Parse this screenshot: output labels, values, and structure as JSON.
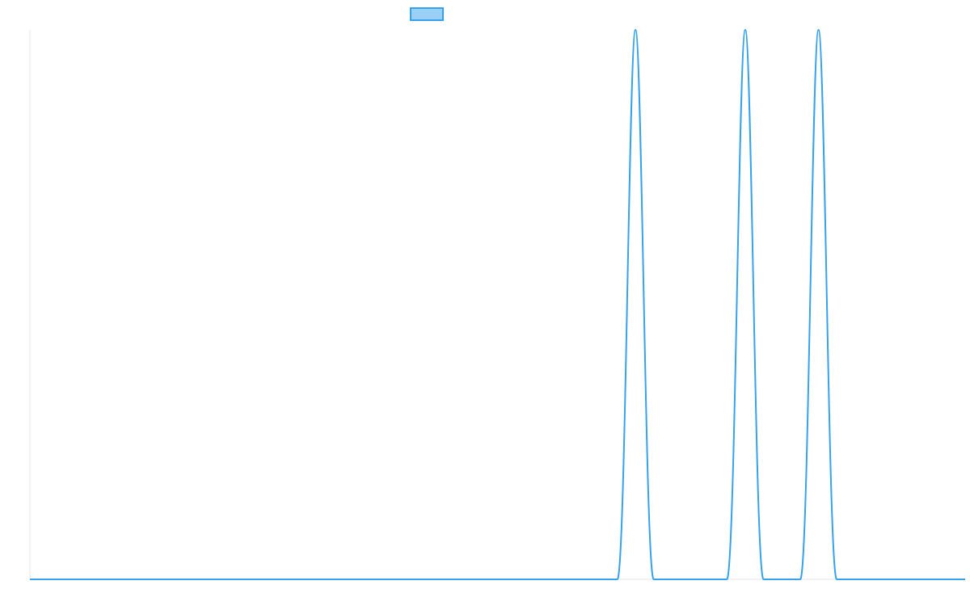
{
  "chart_data": {
    "type": "line",
    "title": "",
    "xlabel": "",
    "ylabel": "",
    "xlim": [
      0,
      1
    ],
    "ylim": [
      0,
      1
    ],
    "grid": false,
    "legend_placement": "top-center",
    "series": [
      {
        "legend_swatch": true,
        "color": "#36a2eb",
        "fill": "#9ad0f5",
        "points": [
          [
            0.0,
            0
          ],
          [
            0.6281,
            0
          ],
          [
            0.6475,
            1
          ],
          [
            0.667,
            0
          ],
          [
            0.7452,
            0
          ],
          [
            0.7649,
            1
          ],
          [
            0.7844,
            0
          ],
          [
            0.8237,
            0
          ],
          [
            0.8432,
            1
          ],
          [
            0.8627,
            0
          ],
          [
            1.0,
            0
          ]
        ]
      }
    ]
  }
}
